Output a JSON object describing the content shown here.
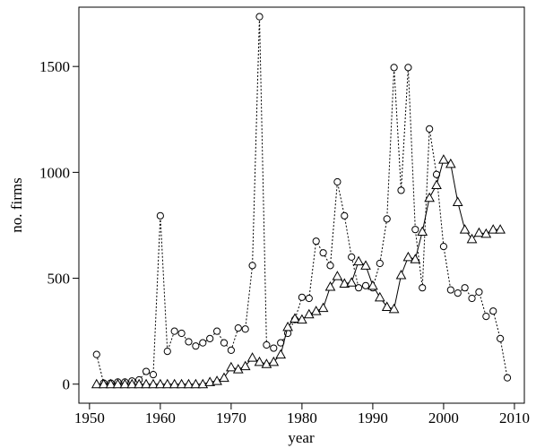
{
  "chart_data": {
    "type": "line",
    "xlabel": "year",
    "ylabel": "no. firms",
    "xlim": [
      1948.5,
      2011.4
    ],
    "ylim": [
      -90,
      1780
    ],
    "xticks": [
      1950,
      1960,
      1970,
      1980,
      1990,
      2000,
      2010
    ],
    "yticks": [
      0,
      500,
      1000,
      1500
    ],
    "series": [
      {
        "color": "#000000",
        "marker": "circle",
        "linestyle": "dotted",
        "x": [
          1951,
          1952,
          1953,
          1954,
          1955,
          1956,
          1957,
          1958,
          1959,
          1960,
          1961,
          1962,
          1963,
          1964,
          1965,
          1966,
          1967,
          1968,
          1969,
          1970,
          1971,
          1972,
          1973,
          1974,
          1975,
          1976,
          1977,
          1978,
          1979,
          1980,
          1981,
          1982,
          1983,
          1984,
          1985,
          1986,
          1987,
          1988,
          1989,
          1990,
          1991,
          1992,
          1993,
          1994,
          1995,
          1996,
          1997,
          1998,
          1999,
          2000,
          2001,
          2002,
          2003,
          2004,
          2005,
          2006,
          2007,
          2008,
          2009
        ],
        "values": [
          140,
          5,
          5,
          10,
          10,
          15,
          20,
          60,
          45,
          795,
          155,
          250,
          240,
          200,
          180,
          195,
          215,
          250,
          195,
          160,
          265,
          260,
          560,
          1735,
          185,
          170,
          195,
          240,
          305,
          410,
          405,
          675,
          620,
          560,
          955,
          795,
          600,
          455,
          465,
          455,
          570,
          780,
          1495,
          915,
          1495,
          730,
          455,
          1205,
          990,
          650,
          445,
          430,
          455,
          405,
          435,
          320,
          345,
          215,
          30
        ]
      },
      {
        "color": "#000000",
        "marker": "triangle",
        "linestyle": "solid",
        "x": [
          1951,
          1952,
          1953,
          1954,
          1955,
          1956,
          1957,
          1958,
          1959,
          1960,
          1961,
          1962,
          1963,
          1964,
          1965,
          1966,
          1967,
          1968,
          1969,
          1970,
          1971,
          1972,
          1973,
          1974,
          1975,
          1976,
          1977,
          1978,
          1979,
          1980,
          1981,
          1982,
          1983,
          1984,
          1985,
          1986,
          1987,
          1988,
          1989,
          1990,
          1991,
          1992,
          1993,
          1994,
          1995,
          1996,
          1997,
          1998,
          1999,
          2000,
          2001,
          2002,
          2003,
          2004,
          2005,
          2006,
          2007,
          2008
        ],
        "values": [
          0,
          0,
          0,
          0,
          0,
          0,
          0,
          0,
          0,
          0,
          0,
          0,
          0,
          0,
          0,
          0,
          10,
          15,
          30,
          80,
          70,
          85,
          125,
          105,
          95,
          105,
          140,
          270,
          310,
          305,
          330,
          345,
          360,
          460,
          510,
          475,
          480,
          580,
          560,
          465,
          410,
          365,
          355,
          515,
          600,
          590,
          720,
          880,
          940,
          1060,
          1040,
          860,
          730,
          685,
          715,
          710,
          730,
          730
        ]
      }
    ]
  }
}
